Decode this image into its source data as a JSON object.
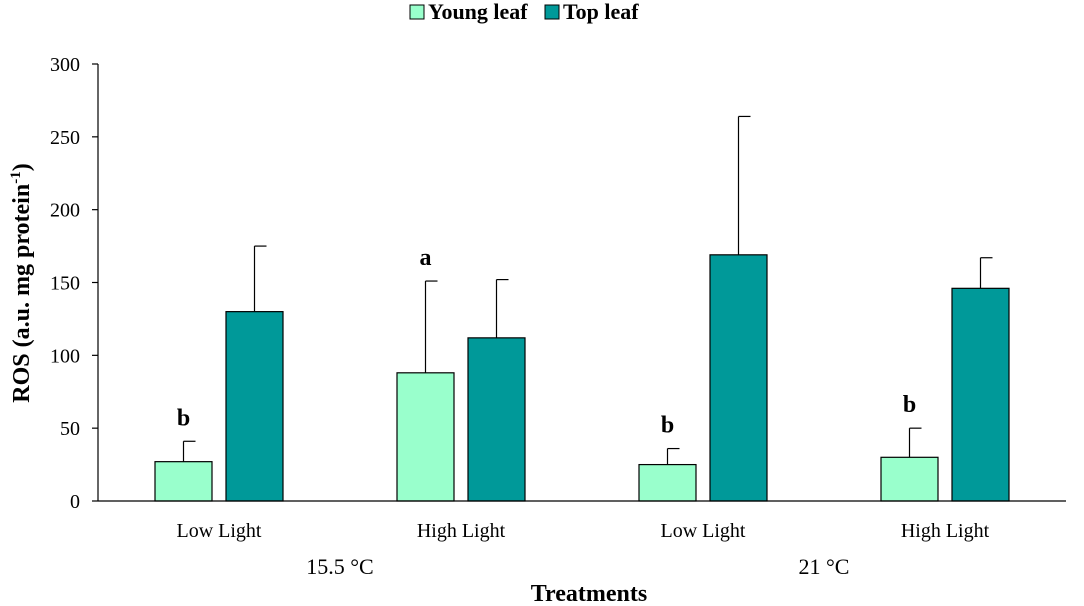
{
  "chart_data": {
    "type": "bar",
    "xlabel": "Treatments",
    "ylabel": "ROS (a.u. mg protein",
    "ylabel_superscript": "-1",
    "ylabel_close": ")",
    "ylim": [
      0,
      300
    ],
    "yticks": [
      0,
      50,
      100,
      150,
      200,
      250,
      300
    ],
    "legend_position": "top-center",
    "categories": [
      "Low Light",
      "High Light",
      "Low Light",
      "High Light"
    ],
    "groups": [
      {
        "label": "15.5 °C",
        "span": [
          0,
          1
        ]
      },
      {
        "label": "21 °C",
        "span": [
          2,
          3
        ]
      }
    ],
    "series": [
      {
        "name": "Young leaf",
        "color": "#99ffcc",
        "values": [
          27,
          88,
          25,
          30
        ],
        "errors": [
          14,
          63,
          11,
          20
        ],
        "labels": [
          "b",
          "a",
          "b",
          "b"
        ]
      },
      {
        "name": "Top leaf",
        "color": "#009999",
        "values": [
          130,
          112,
          169,
          146
        ],
        "errors": [
          45,
          40,
          95,
          21
        ],
        "labels": [
          "",
          "",
          "",
          ""
        ]
      }
    ]
  }
}
